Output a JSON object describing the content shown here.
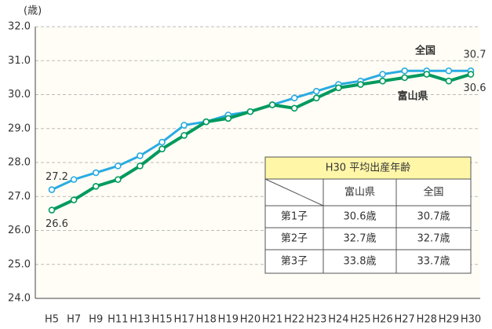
{
  "chart_data": {
    "type": "line",
    "y_label": "(歳)",
    "categories": [
      "H5",
      "H7",
      "H9",
      "H11",
      "H13",
      "H15",
      "H17",
      "H18",
      "H19",
      "H20",
      "H21",
      "H22",
      "H23",
      "H24",
      "H25",
      "H26",
      "H27",
      "H28",
      "H29",
      "H30"
    ],
    "series": [
      {
        "name": "全国",
        "color": "#29abe2",
        "values": [
          27.2,
          27.5,
          27.7,
          27.9,
          28.2,
          28.6,
          29.1,
          29.2,
          29.4,
          29.5,
          29.7,
          29.9,
          30.1,
          30.3,
          30.4,
          30.6,
          30.7,
          30.7,
          30.7,
          30.7
        ]
      },
      {
        "name": "富山県",
        "color": "#009a5e",
        "values": [
          26.6,
          26.9,
          27.3,
          27.5,
          27.9,
          28.4,
          28.8,
          29.2,
          29.3,
          29.5,
          29.7,
          29.6,
          29.9,
          30.2,
          30.3,
          30.4,
          30.5,
          30.6,
          30.4,
          30.6
        ]
      }
    ],
    "ylim": [
      24,
      32
    ],
    "yticks": [
      {
        "value": 24,
        "label": "24.0"
      },
      {
        "value": 25,
        "label": "25.0"
      },
      {
        "value": 26,
        "label": "26.0"
      },
      {
        "value": 27,
        "label": "27.0"
      },
      {
        "value": 28,
        "label": "28.0"
      },
      {
        "value": 29,
        "label": "29.0"
      },
      {
        "value": 30,
        "label": "30.0"
      },
      {
        "value": 31,
        "label": "31.0"
      },
      {
        "value": 32,
        "label": "32.0"
      }
    ],
    "grid": true
  },
  "table": {
    "title": "H30 平均出産年齢",
    "headers": [
      "富山県",
      "全国"
    ],
    "rows": [
      [
        "第1子",
        "30.6歳",
        "30.7歳"
      ],
      [
        "第2子",
        "32.7歳",
        "32.7歳"
      ],
      [
        "第3子",
        "33.8歳",
        "33.7歳"
      ]
    ]
  }
}
